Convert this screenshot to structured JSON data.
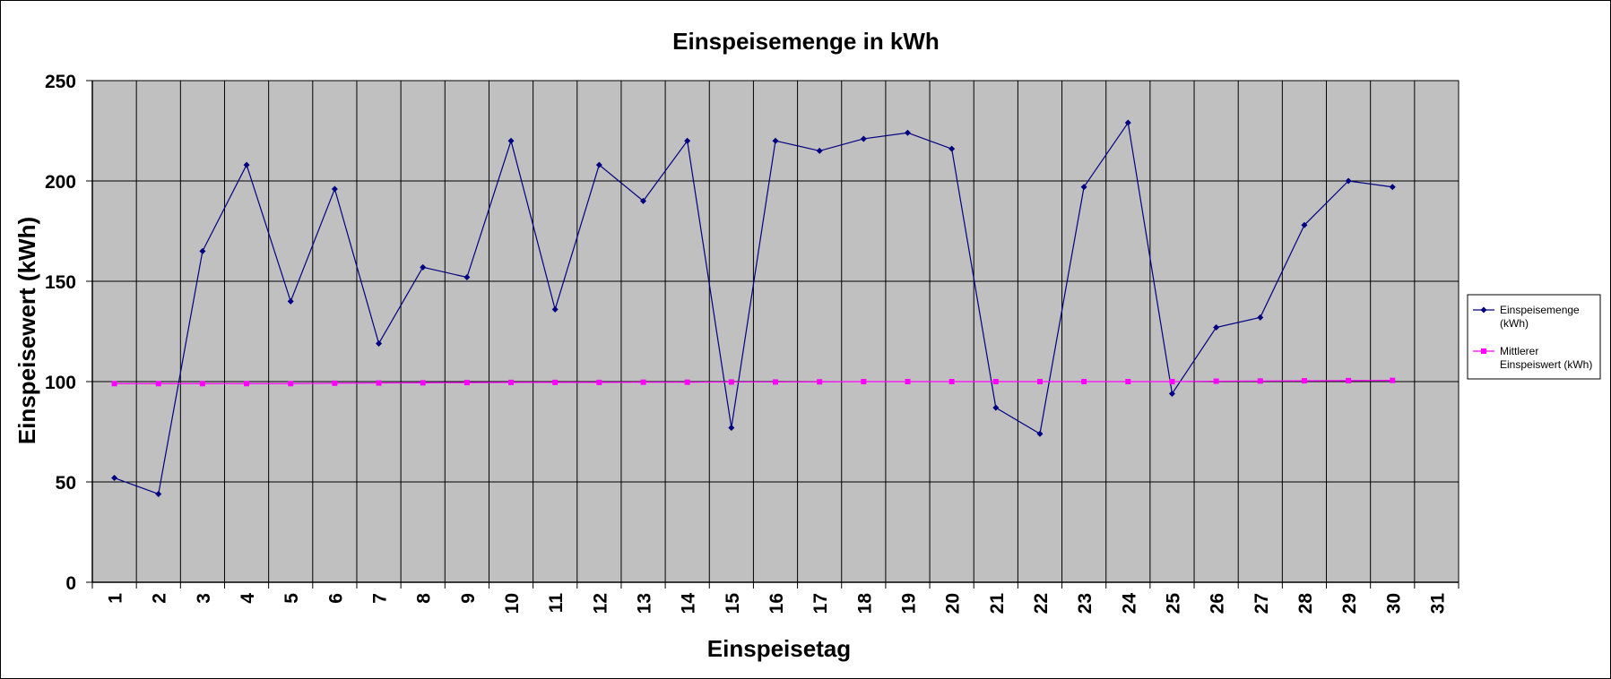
{
  "chart_data": {
    "type": "line",
    "title": "Einspeisemenge in kWh",
    "xlabel": "Einspeisetag",
    "ylabel": "Einspeisewert  (kWh)",
    "categories": [
      "1",
      "2",
      "3",
      "4",
      "5",
      "6",
      "7",
      "8",
      "9",
      "10",
      "11",
      "12",
      "13",
      "14",
      "15",
      "16",
      "17",
      "18",
      "19",
      "20",
      "21",
      "22",
      "23",
      "24",
      "25",
      "26",
      "27",
      "28",
      "29",
      "30",
      "31"
    ],
    "ylim": [
      0,
      250
    ],
    "yticks": [
      0,
      50,
      100,
      150,
      200,
      250
    ],
    "grid": true,
    "legend_position": "right",
    "plot_background": "#C0C0C0",
    "series": [
      {
        "name_lines": [
          "Einspeisemenge",
          "(kWh)"
        ],
        "color": "#000080",
        "marker": "diamond",
        "values": [
          52,
          44,
          165,
          208,
          140,
          196,
          119,
          157,
          152,
          220,
          136,
          208,
          190,
          220,
          77,
          220,
          215,
          221,
          224,
          216,
          87,
          74,
          197,
          229,
          94,
          127,
          132,
          178,
          200,
          197,
          null
        ]
      },
      {
        "name_lines": [
          "Mittlerer",
          "Einspeiswert (kWh)"
        ],
        "color": "#FF00FF",
        "marker": "square",
        "values": [
          99,
          99,
          99,
          99,
          99,
          99.2,
          99.3,
          99.4,
          99.5,
          99.6,
          99.6,
          99.6,
          99.7,
          99.7,
          99.8,
          99.8,
          99.9,
          100,
          100,
          100,
          100,
          100,
          100,
          100,
          100,
          100.2,
          100.3,
          100.4,
          100.5,
          100.6,
          null
        ]
      }
    ]
  }
}
